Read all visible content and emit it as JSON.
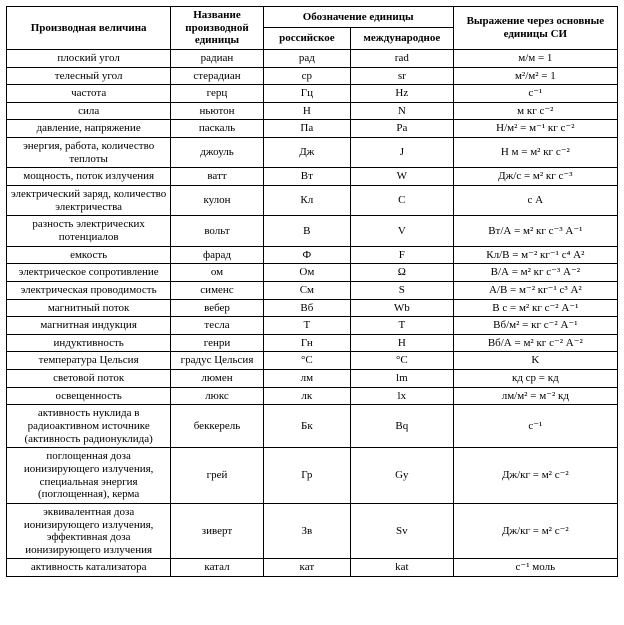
{
  "header": {
    "col1": "Производная величина",
    "col2": "Название производной единицы",
    "col34_group": "Обозначение единицы",
    "col3": "российское",
    "col4": "международное",
    "col5": "Выражение через основные единицы СИ"
  },
  "rows": [
    {
      "q": "плоский угол",
      "name": "радиан",
      "ru": "рад",
      "int": "rad",
      "si": "м/м = 1"
    },
    {
      "q": "телесный угол",
      "name": "стерадиан",
      "ru": "ср",
      "int": "sr",
      "si": "м²/м² = 1"
    },
    {
      "q": "частота",
      "name": "герц",
      "ru": "Гц",
      "int": "Hz",
      "si": "с⁻¹"
    },
    {
      "q": "сила",
      "name": "ньютон",
      "ru": "Н",
      "int": "N",
      "si": "м кг с⁻²"
    },
    {
      "q": "давление, напряжение",
      "name": "паскаль",
      "ru": "Па",
      "int": "Pa",
      "si": "Н/м² = м⁻¹ кг с⁻²"
    },
    {
      "q": "энергия, работа, количество теплоты",
      "name": "джоуль",
      "ru": "Дж",
      "int": "J",
      "si": "Н м = м² кг с⁻²"
    },
    {
      "q": "мощность, поток излучения",
      "name": "ватт",
      "ru": "Вт",
      "int": "W",
      "si": "Дж/с = м² кг с⁻³"
    },
    {
      "q": "электрический заряд, количество электричества",
      "name": "кулон",
      "ru": "Кл",
      "int": "C",
      "si": "с А"
    },
    {
      "q": "разность электрических потенциалов",
      "name": "вольт",
      "ru": "В",
      "int": "V",
      "si": "Вт/А = м² кг с⁻³ А⁻¹"
    },
    {
      "q": "емкость",
      "name": "фарад",
      "ru": "Ф",
      "int": "F",
      "si": "Кл/В = м⁻² кг⁻¹ с⁴ А²"
    },
    {
      "q": "электрическое сопротивление",
      "name": "ом",
      "ru": "Ом",
      "int": "Ω",
      "si": "В/А = м² кг с⁻³ А⁻²"
    },
    {
      "q": "электрическая проводимость",
      "name": "сименс",
      "ru": "См",
      "int": "S",
      "si": "А/В = м⁻² кг⁻¹ с³ А²"
    },
    {
      "q": "магнитный поток",
      "name": "вебер",
      "ru": "Вб",
      "int": "Wb",
      "si": "В с = м² кг с⁻² А⁻¹"
    },
    {
      "q": "магнитная индукция",
      "name": "тесла",
      "ru": "Т",
      "int": "T",
      "si": "Вб/м² = кг с⁻² А⁻¹"
    },
    {
      "q": "индуктивность",
      "name": "генри",
      "ru": "Гн",
      "int": "H",
      "si": "Вб/А = м² кг с⁻² А⁻²"
    },
    {
      "q": "температура Цельсия",
      "name": "градус Цельсия",
      "ru": "°C",
      "int": "°C",
      "si": "K"
    },
    {
      "q": "световой поток",
      "name": "люмен",
      "ru": "лм",
      "int": "lm",
      "si": "кд ср = кд"
    },
    {
      "q": "освещенность",
      "name": "люкс",
      "ru": "лк",
      "int": "lx",
      "si": "лм/м² = м⁻² кд"
    },
    {
      "q": "активность нуклида в радиоактивном источнике (активность радионуклида)",
      "name": "беккерель",
      "ru": "Бк",
      "int": "Bq",
      "si": "с⁻¹"
    },
    {
      "q": "поглощенная доза ионизирующего излучения, специальная энергия (поглощенная), керма",
      "name": "грей",
      "ru": "Гр",
      "int": "Gy",
      "si": "Дж/кг = м² с⁻²"
    },
    {
      "q": "эквивалентная доза ионизирующего излучения, эффективная доза ионизирующего излучения",
      "name": "зиверт",
      "ru": "Зв",
      "int": "Sv",
      "si": "Дж/кг = м² с⁻²"
    },
    {
      "q": "активность катализатора",
      "name": "катал",
      "ru": "кат",
      "int": "kat",
      "si": "с⁻¹ моль"
    }
  ]
}
